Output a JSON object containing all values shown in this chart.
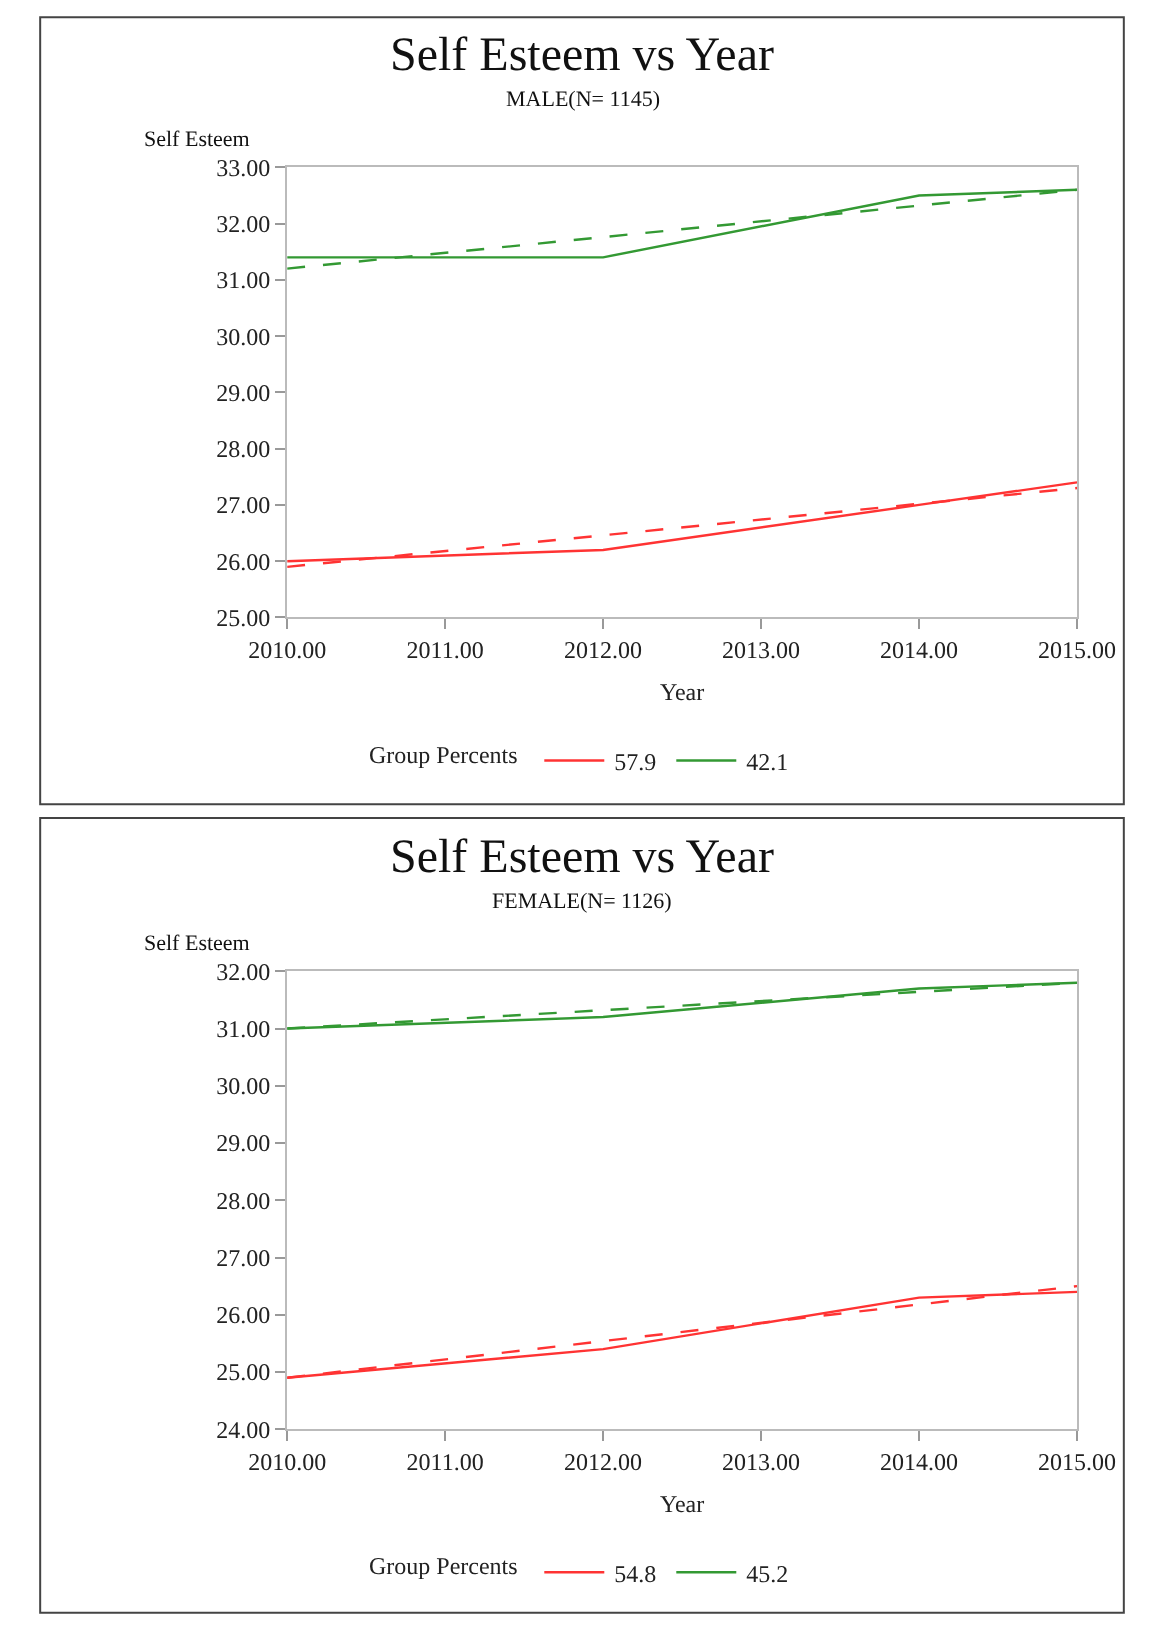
{
  "chart_data": [
    {
      "type": "line",
      "title": "Self Esteem vs Year",
      "subtitle": "MALE(N= 1145)",
      "xlabel": "Year",
      "ylabel": "Self Esteem",
      "legend_title": "Group Percents",
      "legend": "bottom",
      "marker": "none",
      "xlim": [
        2010,
        2015
      ],
      "xticks": [
        {
          "value": 2010,
          "label": "2010.00"
        },
        {
          "value": 2011,
          "label": "2011.00"
        },
        {
          "value": 2012,
          "label": "2012.00"
        },
        {
          "value": 2013,
          "label": "2013.00"
        },
        {
          "value": 2014,
          "label": "2014.00"
        },
        {
          "value": 2015,
          "label": "2015.00"
        }
      ],
      "ylim": [
        25,
        33
      ],
      "yticks": [
        {
          "value": 25,
          "label": "25.00"
        },
        {
          "value": 26,
          "label": "26.00"
        },
        {
          "value": 27,
          "label": "27.00"
        },
        {
          "value": 28,
          "label": "28.00"
        },
        {
          "value": 29,
          "label": "29.00"
        },
        {
          "value": 30,
          "label": "30.00"
        },
        {
          "value": 31,
          "label": "31.00"
        },
        {
          "value": 32,
          "label": "32.00"
        },
        {
          "value": 33,
          "label": "33.00"
        }
      ],
      "x": [
        2010,
        2012,
        2014,
        2015
      ],
      "series": [
        {
          "name": "57.9",
          "color": "#ff3333",
          "values": [
            26.0,
            26.2,
            27.0,
            27.4
          ],
          "line_style": "solid"
        },
        {
          "name": "42.1",
          "color": "#339933",
          "values": [
            31.4,
            31.4,
            32.5,
            32.6
          ],
          "line_style": "solid"
        },
        {
          "type": "line",
          "color": "#ff3333",
          "values": [
            25.9,
            26.46,
            27.02,
            27.3
          ],
          "line_style": "dashed"
        },
        {
          "type": "line",
          "color": "#339933",
          "values": [
            31.2,
            31.76,
            32.32,
            32.6
          ],
          "line_style": "dashed"
        }
      ]
    },
    {
      "type": "line",
      "title": "Self Esteem vs Year",
      "subtitle": "FEMALE(N= 1126)",
      "xlabel": "Year",
      "ylabel": "Self Esteem",
      "legend_title": "Group Percents",
      "legend": "bottom",
      "marker": "none",
      "xlim": [
        2010,
        2015
      ],
      "xticks": [
        {
          "value": 2010,
          "label": "2010.00"
        },
        {
          "value": 2011,
          "label": "2011.00"
        },
        {
          "value": 2012,
          "label": "2012.00"
        },
        {
          "value": 2013,
          "label": "2013.00"
        },
        {
          "value": 2014,
          "label": "2014.00"
        },
        {
          "value": 2015,
          "label": "2015.00"
        }
      ],
      "ylim": [
        24,
        32
      ],
      "yticks": [
        {
          "value": 24,
          "label": "24.00"
        },
        {
          "value": 25,
          "label": "25.00"
        },
        {
          "value": 26,
          "label": "26.00"
        },
        {
          "value": 27,
          "label": "27.00"
        },
        {
          "value": 28,
          "label": "28.00"
        },
        {
          "value": 29,
          "label": "29.00"
        },
        {
          "value": 30,
          "label": "30.00"
        },
        {
          "value": 31,
          "label": "31.00"
        },
        {
          "value": 32,
          "label": "32.00"
        }
      ],
      "x": [
        2010,
        2012,
        2014,
        2015
      ],
      "series": [
        {
          "name": "54.8",
          "color": "#ff3333",
          "values": [
            24.9,
            25.4,
            26.3,
            26.4
          ],
          "line_style": "solid"
        },
        {
          "name": "45.2",
          "color": "#339933",
          "values": [
            31.0,
            31.2,
            31.7,
            31.8
          ],
          "line_style": "solid"
        },
        {
          "type": "line",
          "color": "#ff3333",
          "values": [
            24.9,
            25.54,
            26.18,
            26.5
          ],
          "line_style": "dashed"
        },
        {
          "type": "line",
          "color": "#339933",
          "values": [
            31.0,
            31.32,
            31.64,
            31.8
          ],
          "line_style": "dashed"
        }
      ]
    }
  ]
}
